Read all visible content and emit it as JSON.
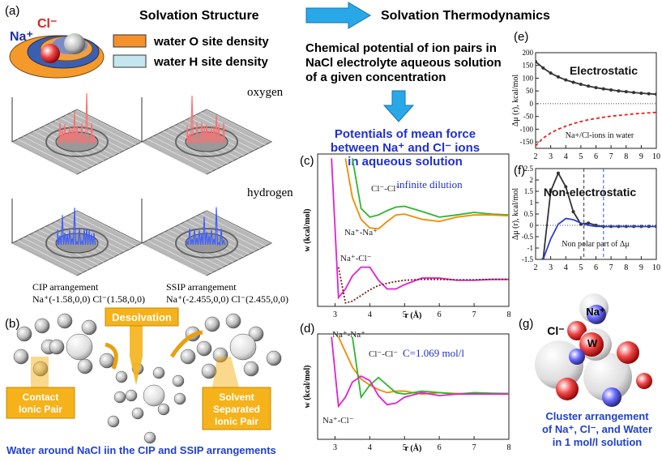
{
  "panel_a": {
    "label": "(a)",
    "ion_cl": "Cl⁻",
    "ion_na": "Na⁺",
    "title": "Solvation Structure",
    "legend": [
      "water O site density",
      "water H site density"
    ],
    "surface_labels": [
      "oxygen",
      "hydrogen"
    ],
    "cip": {
      "title": "CIP arrangement",
      "coords": "Na⁺(-1.58,0,0)  Cl⁻(1.58,0,0)"
    },
    "ssip": {
      "title": "SSIP arrangement",
      "coords": "Na⁺(-2.455,0,0)  Cl⁻(2.455,0,0)"
    }
  },
  "thermo": {
    "title": "Solvation Thermodynamics",
    "text": [
      "Chemical potential of ion pairs in",
      "NaCl electrolyte aqueous solution",
      "of a given concentration"
    ],
    "pmf": [
      "Potentials of mean force",
      "between Na⁺ and Cl⁻ ions",
      "in aqueous solution"
    ]
  },
  "panel_b": {
    "label": "(b)",
    "desolvation": "Desolvation",
    "cip": [
      "Contact",
      "Ionic Pair"
    ],
    "ssip": [
      "Solvent",
      "Separated",
      "Ionic Pair"
    ],
    "caption": "Water around NaCl iin the CIP and SSIP arrangements"
  },
  "panel_g": {
    "label": "(g)",
    "na": "Na⁺",
    "cl": "Cl⁻",
    "w": "W",
    "caption": [
      "Cluster arrangement",
      "of Na⁺, Cl⁻, and Water",
      "in 1 mol/l solution"
    ]
  },
  "chart_data": [
    {
      "type": "line",
      "panel_label": "(c)",
      "xlabel": "r (Å)",
      "ylabel": "w (kcal/mol)",
      "annotations": [
        "infinite dilution"
      ],
      "x": [
        2.9,
        3.1,
        3.3,
        3.5,
        3.75,
        4,
        4.25,
        4.5,
        4.75,
        5,
        5.5,
        6,
        6.5,
        7,
        7.5,
        8
      ],
      "xlim": [
        2.5,
        8
      ],
      "xticks": [
        3,
        4,
        5,
        6,
        7,
        8
      ],
      "ylim": [
        -1.5,
        2
      ],
      "series": [
        {
          "name": "Cl⁻-Cl⁻",
          "color": "#2fb52f",
          "values": [
            null,
            null,
            null,
            1.9,
            0.75,
            0.55,
            0.6,
            0.7,
            0.78,
            0.8,
            0.68,
            0.55,
            0.6,
            0.66,
            0.62,
            0.6
          ]
        },
        {
          "name": "Na⁺-Na⁺",
          "color": "#f08c00",
          "values": [
            null,
            null,
            1.9,
            1.0,
            0.5,
            0.3,
            0.28,
            0.45,
            0.6,
            0.62,
            0.5,
            0.45,
            0.55,
            0.6,
            0.6,
            0.58
          ]
        },
        {
          "name": "Na⁺-Cl⁻",
          "color": "#e020d0",
          "values": [
            1.9,
            -1.3,
            -1.1,
            -0.8,
            -0.6,
            -0.6,
            -0.9,
            -1.1,
            -1.1,
            -1.0,
            -0.85,
            -0.85,
            -0.9,
            -0.9,
            -0.88,
            -0.88
          ]
        },
        {
          "color": "#7a1a1a",
          "style": "dotted",
          "values": [
            null,
            -0.6,
            -1.42,
            -1.38,
            -1.25,
            -1.12,
            -1.02,
            -0.97,
            -0.93,
            -0.9,
            -0.88,
            -0.88,
            -0.89,
            -0.89,
            -0.88,
            -0.88
          ]
        }
      ]
    },
    {
      "type": "line",
      "panel_label": "(d)",
      "xlabel": "r (Å)",
      "ylabel": "w (kcal/mol)",
      "annotations": [
        "C=1.069 mol/l"
      ],
      "x": [
        2.9,
        3.1,
        3.3,
        3.5,
        3.75,
        4,
        4.25,
        4.5,
        4.75,
        5,
        5.5,
        6,
        6.5,
        7,
        7.5,
        8
      ],
      "xlim": [
        2.5,
        8
      ],
      "xticks": [
        3,
        4,
        5,
        6,
        7,
        8
      ],
      "ylim": [
        -1.5,
        2
      ],
      "series": [
        {
          "name": "Na⁺-Na⁺",
          "color": "#f08c00",
          "values": [
            null,
            1.9,
            1.4,
            0.9,
            0.5,
            0.3,
            0.15,
            0.05,
            0.1,
            0.1,
            0.0,
            0.05,
            0.02,
            0.02,
            0.02,
            0.02
          ]
        },
        {
          "name": "Cl⁻-Cl⁻",
          "color": "#2fb52f",
          "values": [
            null,
            null,
            null,
            1.9,
            -0.1,
            0.3,
            0.55,
            0.3,
            0.05,
            0.0,
            0.1,
            0.05,
            0.0,
            0.05,
            0.03,
            0.02
          ]
        },
        {
          "name": "Na⁺-Cl⁻",
          "color": "#e020d0",
          "values": [
            1.9,
            -0.4,
            -0.1,
            0.4,
            0.6,
            0.45,
            -0.05,
            -0.35,
            -0.3,
            -0.1,
            0.05,
            -0.05,
            0.0,
            0.0,
            0.0,
            0.0
          ]
        }
      ]
    },
    {
      "type": "line",
      "panel_label": "(e)",
      "ylabel": "Δμ (r), kcal/mol",
      "annotations": [
        "Electrostatic",
        "Na+/Cl-ions in water"
      ],
      "x": [
        2,
        2.5,
        3,
        3.5,
        4,
        4.5,
        5,
        5.5,
        6,
        6.5,
        7,
        7.5,
        8,
        8.5,
        9,
        9.5,
        10
      ],
      "xlim": [
        2,
        10
      ],
      "xticks": [
        2,
        3,
        4,
        5,
        6,
        7,
        8,
        9,
        10
      ],
      "ylim": [
        -175,
        200
      ],
      "yticks": [
        -150,
        -100,
        -50,
        0,
        50,
        100,
        150,
        200
      ],
      "zero_line": true,
      "series": [
        {
          "color": "#333333",
          "marker": true,
          "values": [
            165,
            140,
            120,
            105,
            93,
            84,
            76,
            69,
            63,
            58,
            54,
            50,
            47,
            44,
            41,
            39,
            37
          ]
        },
        {
          "color": "#e82020",
          "style": "dashed",
          "values": [
            -165,
            -135,
            -115,
            -100,
            -88,
            -78,
            -70,
            -63,
            -58,
            -53,
            -49,
            -46,
            -43,
            -40,
            -38,
            -36,
            -34
          ]
        }
      ]
    },
    {
      "type": "line",
      "panel_label": "(f)",
      "ylabel": "Δμ (r), kcal/mol",
      "annotations": [
        "Non-electrostatic",
        "Non polar part of Δμ"
      ],
      "x": [
        2,
        2.5,
        3,
        3.5,
        4,
        4.5,
        5,
        5.5,
        6,
        6.5,
        7,
        7.5,
        8,
        8.5,
        9,
        9.5,
        10
      ],
      "xlim": [
        2,
        10
      ],
      "xticks": [
        2,
        3,
        4,
        5,
        6,
        7,
        8,
        9,
        10
      ],
      "ylim": [
        -1.5,
        2.5
      ],
      "yticks": [
        -1.5,
        -1,
        -0.5,
        0,
        0.5,
        1,
        1.5,
        2,
        2.5
      ],
      "zero_line": true,
      "vlines": [
        {
          "value": 5.2,
          "color": "#333333"
        },
        {
          "value": 6.5,
          "color": "#3050e0"
        }
      ],
      "series": [
        {
          "color": "#333333",
          "marker": true,
          "values": [
            null,
            -1.5,
            1.5,
            2.3,
            1.7,
            0.6,
            0.05,
            0.1,
            0.0,
            -0.05,
            -0.05,
            -0.05,
            -0.05,
            -0.05,
            -0.05,
            -0.05,
            -0.05
          ]
        },
        {
          "color": "#3040d0",
          "values": [
            null,
            -1.5,
            -0.6,
            0.05,
            0.3,
            0.25,
            0.1,
            0.0,
            -0.05,
            -0.05,
            -0.05,
            -0.05,
            -0.05,
            -0.05,
            -0.05,
            -0.05,
            -0.05
          ]
        }
      ]
    }
  ]
}
